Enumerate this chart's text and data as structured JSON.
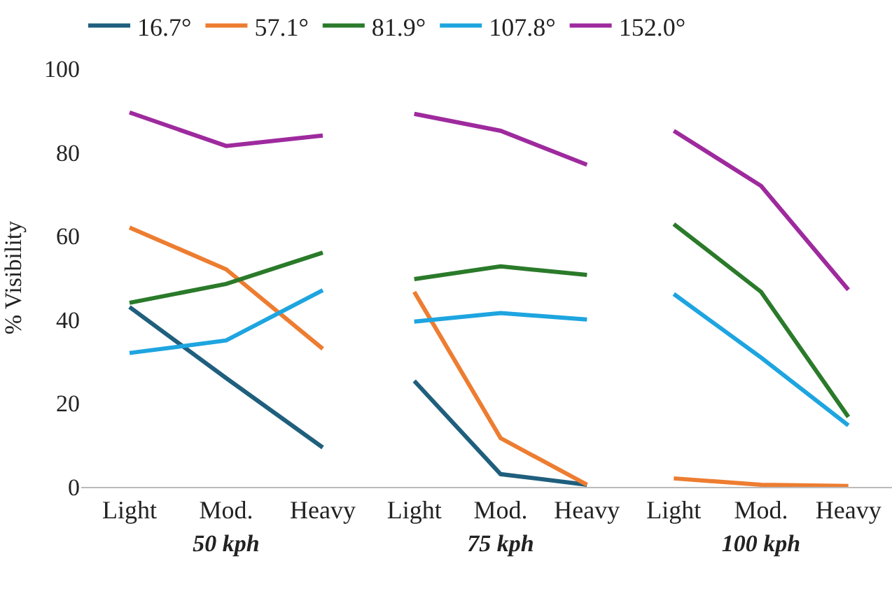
{
  "chart_data": [
    {
      "type": "line",
      "xlabel": "50 kph",
      "ylabel": "% Visibility",
      "categories": [
        "Light",
        "Mod.",
        "Heavy"
      ],
      "ylim": [
        0,
        100
      ],
      "yticks": [
        0,
        20,
        40,
        60,
        80,
        100
      ],
      "legend": "top",
      "grid": false,
      "series": [
        {
          "name": "16.7°",
          "color": "#1f5f7d",
          "values": [
            43,
            26,
            9.4
          ]
        },
        {
          "name": "57.1°",
          "color": "#ed7d31",
          "values": [
            62,
            52,
            33
          ]
        },
        {
          "name": "81.9°",
          "color": "#2a7a2a",
          "values": [
            44,
            48.5,
            56
          ]
        },
        {
          "name": "107.8°",
          "color": "#1ea5e0",
          "values": [
            32,
            35,
            47
          ]
        },
        {
          "name": "152.0°",
          "color": "#9e2a9e",
          "values": [
            89.5,
            81.5,
            84
          ]
        }
      ]
    },
    {
      "type": "line",
      "xlabel": "75 kph",
      "categories": [
        "Light",
        "Mod.",
        "Heavy"
      ],
      "ylim": [
        0,
        100
      ],
      "yticks": [
        0,
        20,
        40,
        60,
        80,
        100
      ],
      "tick_labels": "x",
      "grid": false,
      "series": [
        {
          "color": "#1f5f7d",
          "values": [
            25,
            3,
            0.5
          ]
        },
        {
          "color": "#ed7d31",
          "values": [
            46,
            11.5,
            0.5
          ]
        },
        {
          "color": "#2a7a2a",
          "values": [
            49,
            52,
            50
          ]
        },
        {
          "color": "#1ea5e0",
          "values": [
            39,
            41,
            39.5
          ]
        },
        {
          "color": "#9e2a9e",
          "values": [
            88,
            84,
            76
          ]
        }
      ]
    },
    {
      "type": "line",
      "xlabel": "100 kph",
      "categories": [
        "Light",
        "Mod.",
        "Heavy"
      ],
      "ylim": [
        0,
        100
      ],
      "yticks": [
        0,
        20,
        40,
        60,
        80,
        100
      ],
      "tick_labels": "x",
      "grid": false,
      "series": [
        {
          "color": "#1f5f7d",
          "values": [
            null,
            null,
            null
          ]
        },
        {
          "color": "#ed7d31",
          "values": [
            2,
            0.5,
            0.2
          ]
        },
        {
          "color": "#2a7a2a",
          "values": [
            62,
            46,
            16.5
          ]
        },
        {
          "color": "#1ea5e0",
          "values": [
            45.5,
            30.5,
            14.5
          ]
        },
        {
          "color": "#9e2a9e",
          "values": [
            84,
            71,
            46.5
          ]
        }
      ]
    }
  ]
}
